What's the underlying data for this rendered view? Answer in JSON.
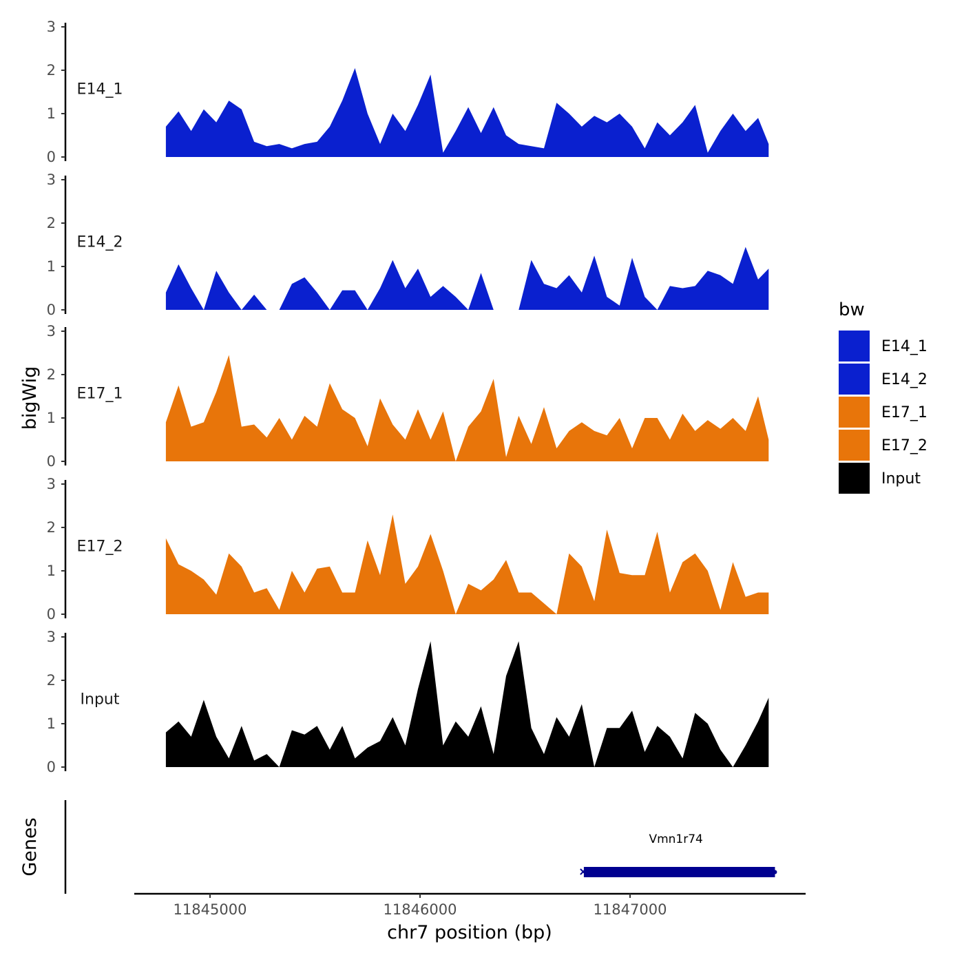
{
  "chart_data": {
    "type": "area",
    "subtype": "genome-coverage-tracks",
    "xlabel": "chr7 position (bp)",
    "ylabel": "bigWig",
    "genes_label": "Genes",
    "xlim": [
      11844600,
      11847830
    ],
    "x_ticks": [
      11845000,
      11846000,
      11847000
    ],
    "x_tick_labels": [
      "11845000",
      "11846000",
      "11847000"
    ],
    "ylim": [
      0,
      3
    ],
    "y_ticks": [
      0,
      1,
      2,
      3
    ],
    "y_tick_labels": [
      "0",
      "1",
      "2",
      "3"
    ],
    "legend": {
      "title": "bw",
      "position": "right",
      "entries": [
        {
          "label": "E14_1",
          "color": "#0a20cf"
        },
        {
          "label": "E14_2",
          "color": "#0a20cf"
        },
        {
          "label": "E17_1",
          "color": "#e8750a"
        },
        {
          "label": "E17_2",
          "color": "#e8750a"
        },
        {
          "label": "Input",
          "color": "#000000"
        }
      ]
    },
    "x": [
      11844790,
      11844850,
      11844910,
      11844970,
      11845030,
      11845090,
      11845150,
      11845210,
      11845270,
      11845330,
      11845390,
      11845450,
      11845510,
      11845570,
      11845630,
      11845690,
      11845750,
      11845810,
      11845870,
      11845930,
      11845990,
      11846050,
      11846110,
      11846170,
      11846230,
      11846290,
      11846350,
      11846410,
      11846470,
      11846530,
      11846590,
      11846650,
      11846710,
      11846770,
      11846830,
      11846890,
      11846950,
      11847010,
      11847070,
      11847130,
      11847190,
      11847250,
      11847310,
      11847370,
      11847430,
      11847490,
      11847550,
      11847610,
      11847660
    ],
    "series": [
      {
        "name": "E14_1",
        "color": "#0a20cf",
        "values": [
          0.7,
          1.05,
          0.6,
          1.1,
          0.8,
          1.3,
          1.1,
          0.35,
          0.25,
          0.3,
          0.2,
          0.3,
          0.35,
          0.7,
          1.3,
          2.05,
          1.0,
          0.3,
          1.0,
          0.6,
          1.2,
          1.9,
          0.1,
          0.6,
          1.15,
          0.55,
          1.15,
          0.5,
          0.3,
          0.25,
          0.2,
          1.25,
          1.0,
          0.7,
          0.95,
          0.8,
          1.0,
          0.7,
          0.2,
          0.8,
          0.5,
          0.8,
          1.2,
          0.1,
          0.6,
          1.0,
          0.6,
          0.9,
          0.3
        ]
      },
      {
        "name": "E14_2",
        "color": "#0a20cf",
        "values": [
          0.4,
          1.05,
          0.5,
          0.0,
          0.9,
          0.4,
          0.0,
          0.35,
          0.0,
          0.0,
          0.6,
          0.75,
          0.4,
          0.0,
          0.45,
          0.45,
          0.0,
          0.5,
          1.15,
          0.5,
          0.95,
          0.3,
          0.55,
          0.3,
          0.0,
          0.85,
          0.0,
          0.0,
          0.0,
          1.15,
          0.6,
          0.5,
          0.8,
          0.4,
          1.25,
          0.3,
          0.1,
          1.2,
          0.3,
          0.0,
          0.55,
          0.5,
          0.55,
          0.9,
          0.8,
          0.6,
          1.45,
          0.7,
          0.95
        ]
      },
      {
        "name": "E17_1",
        "color": "#e8750a",
        "values": [
          0.9,
          1.75,
          0.8,
          0.9,
          1.6,
          2.45,
          0.8,
          0.85,
          0.55,
          1.0,
          0.5,
          1.05,
          0.8,
          1.8,
          1.2,
          1.0,
          0.35,
          1.45,
          0.85,
          0.5,
          1.2,
          0.5,
          1.15,
          0.0,
          0.8,
          1.15,
          1.9,
          0.1,
          1.05,
          0.4,
          1.25,
          0.3,
          0.7,
          0.9,
          0.7,
          0.6,
          1.0,
          0.3,
          1.0,
          1.0,
          0.5,
          1.1,
          0.7,
          0.95,
          0.75,
          1.0,
          0.7,
          1.5,
          0.5
        ]
      },
      {
        "name": "E17_2",
        "color": "#e8750a",
        "values": [
          1.75,
          1.15,
          1.0,
          0.8,
          0.45,
          1.4,
          1.1,
          0.5,
          0.6,
          0.1,
          1.0,
          0.5,
          1.05,
          1.1,
          0.5,
          0.5,
          1.7,
          0.9,
          2.3,
          0.7,
          1.1,
          1.85,
          1.0,
          0.0,
          0.7,
          0.55,
          0.8,
          1.25,
          0.5,
          0.5,
          0.25,
          0.0,
          1.4,
          1.1,
          0.3,
          1.95,
          0.95,
          0.9,
          0.9,
          1.9,
          0.5,
          1.2,
          1.4,
          1.0,
          0.1,
          1.2,
          0.4,
          0.5,
          0.5
        ]
      },
      {
        "name": "Input",
        "color": "#000000",
        "values": [
          0.8,
          1.05,
          0.7,
          1.55,
          0.7,
          0.2,
          0.95,
          0.15,
          0.3,
          0.0,
          0.85,
          0.75,
          0.95,
          0.4,
          0.95,
          0.2,
          0.45,
          0.6,
          1.15,
          0.5,
          1.8,
          2.9,
          0.5,
          1.05,
          0.7,
          1.4,
          0.3,
          2.1,
          2.9,
          0.9,
          0.3,
          1.15,
          0.7,
          1.45,
          0.0,
          0.9,
          0.9,
          1.3,
          0.35,
          0.95,
          0.7,
          0.2,
          1.25,
          1.0,
          0.4,
          0.0,
          0.5,
          1.05,
          1.6
        ]
      }
    ],
    "genes": [
      {
        "name": "Vmn1r74",
        "start": 11846780,
        "end": 11847690,
        "strand": "+",
        "color": "#000090"
      }
    ]
  }
}
